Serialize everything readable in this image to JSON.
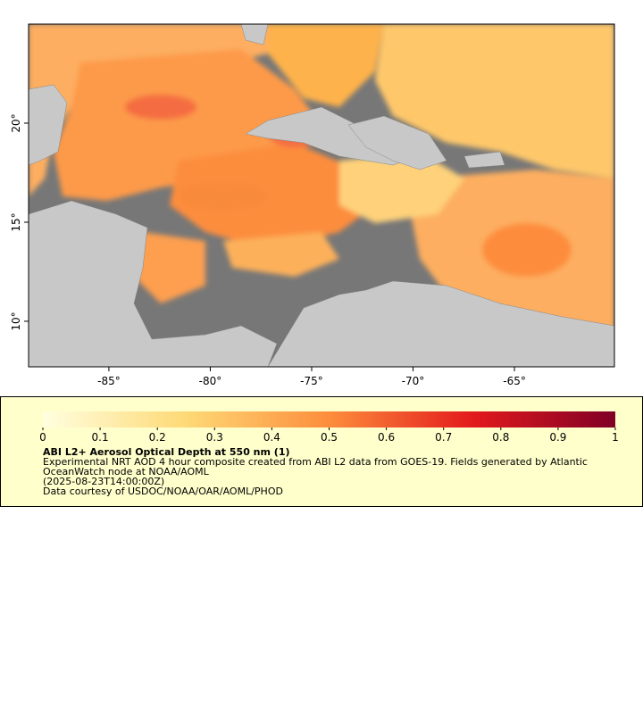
{
  "map": {
    "xlim": [
      -88.96,
      -60.07
    ],
    "ylim": [
      7.7,
      25
    ],
    "xticks": [
      {
        "value": -85,
        "label": "-85°"
      },
      {
        "value": -80,
        "label": "-80°"
      },
      {
        "value": -75,
        "label": "-75°"
      },
      {
        "value": -70,
        "label": "-70°"
      },
      {
        "value": -65,
        "label": "-65°"
      }
    ],
    "yticks": [
      {
        "value": 10,
        "label": "10°"
      },
      {
        "value": 15,
        "label": "15°"
      },
      {
        "value": 20,
        "label": "20°"
      }
    ]
  },
  "colorbar": {
    "lim": [
      0,
      1
    ],
    "ticks": [
      0,
      0.1,
      0.2,
      0.3,
      0.4,
      0.5,
      0.6,
      0.7,
      0.8,
      0.9,
      1
    ]
  },
  "legend": {
    "title": "ABI L2+ Aerosol Optical Depth at 550 nm (1)",
    "lines": [
      "Experimental NRT AOD 4 hour composite created from ABI L2 data from GOES-19. Fields generated by Atlantic OceanWatch node at NOAA/AOML",
      "(2025-08-23T14:00:00Z)",
      "Data courtesy of USDOC/NOAA/OAR/AOML/PHOD"
    ]
  }
}
